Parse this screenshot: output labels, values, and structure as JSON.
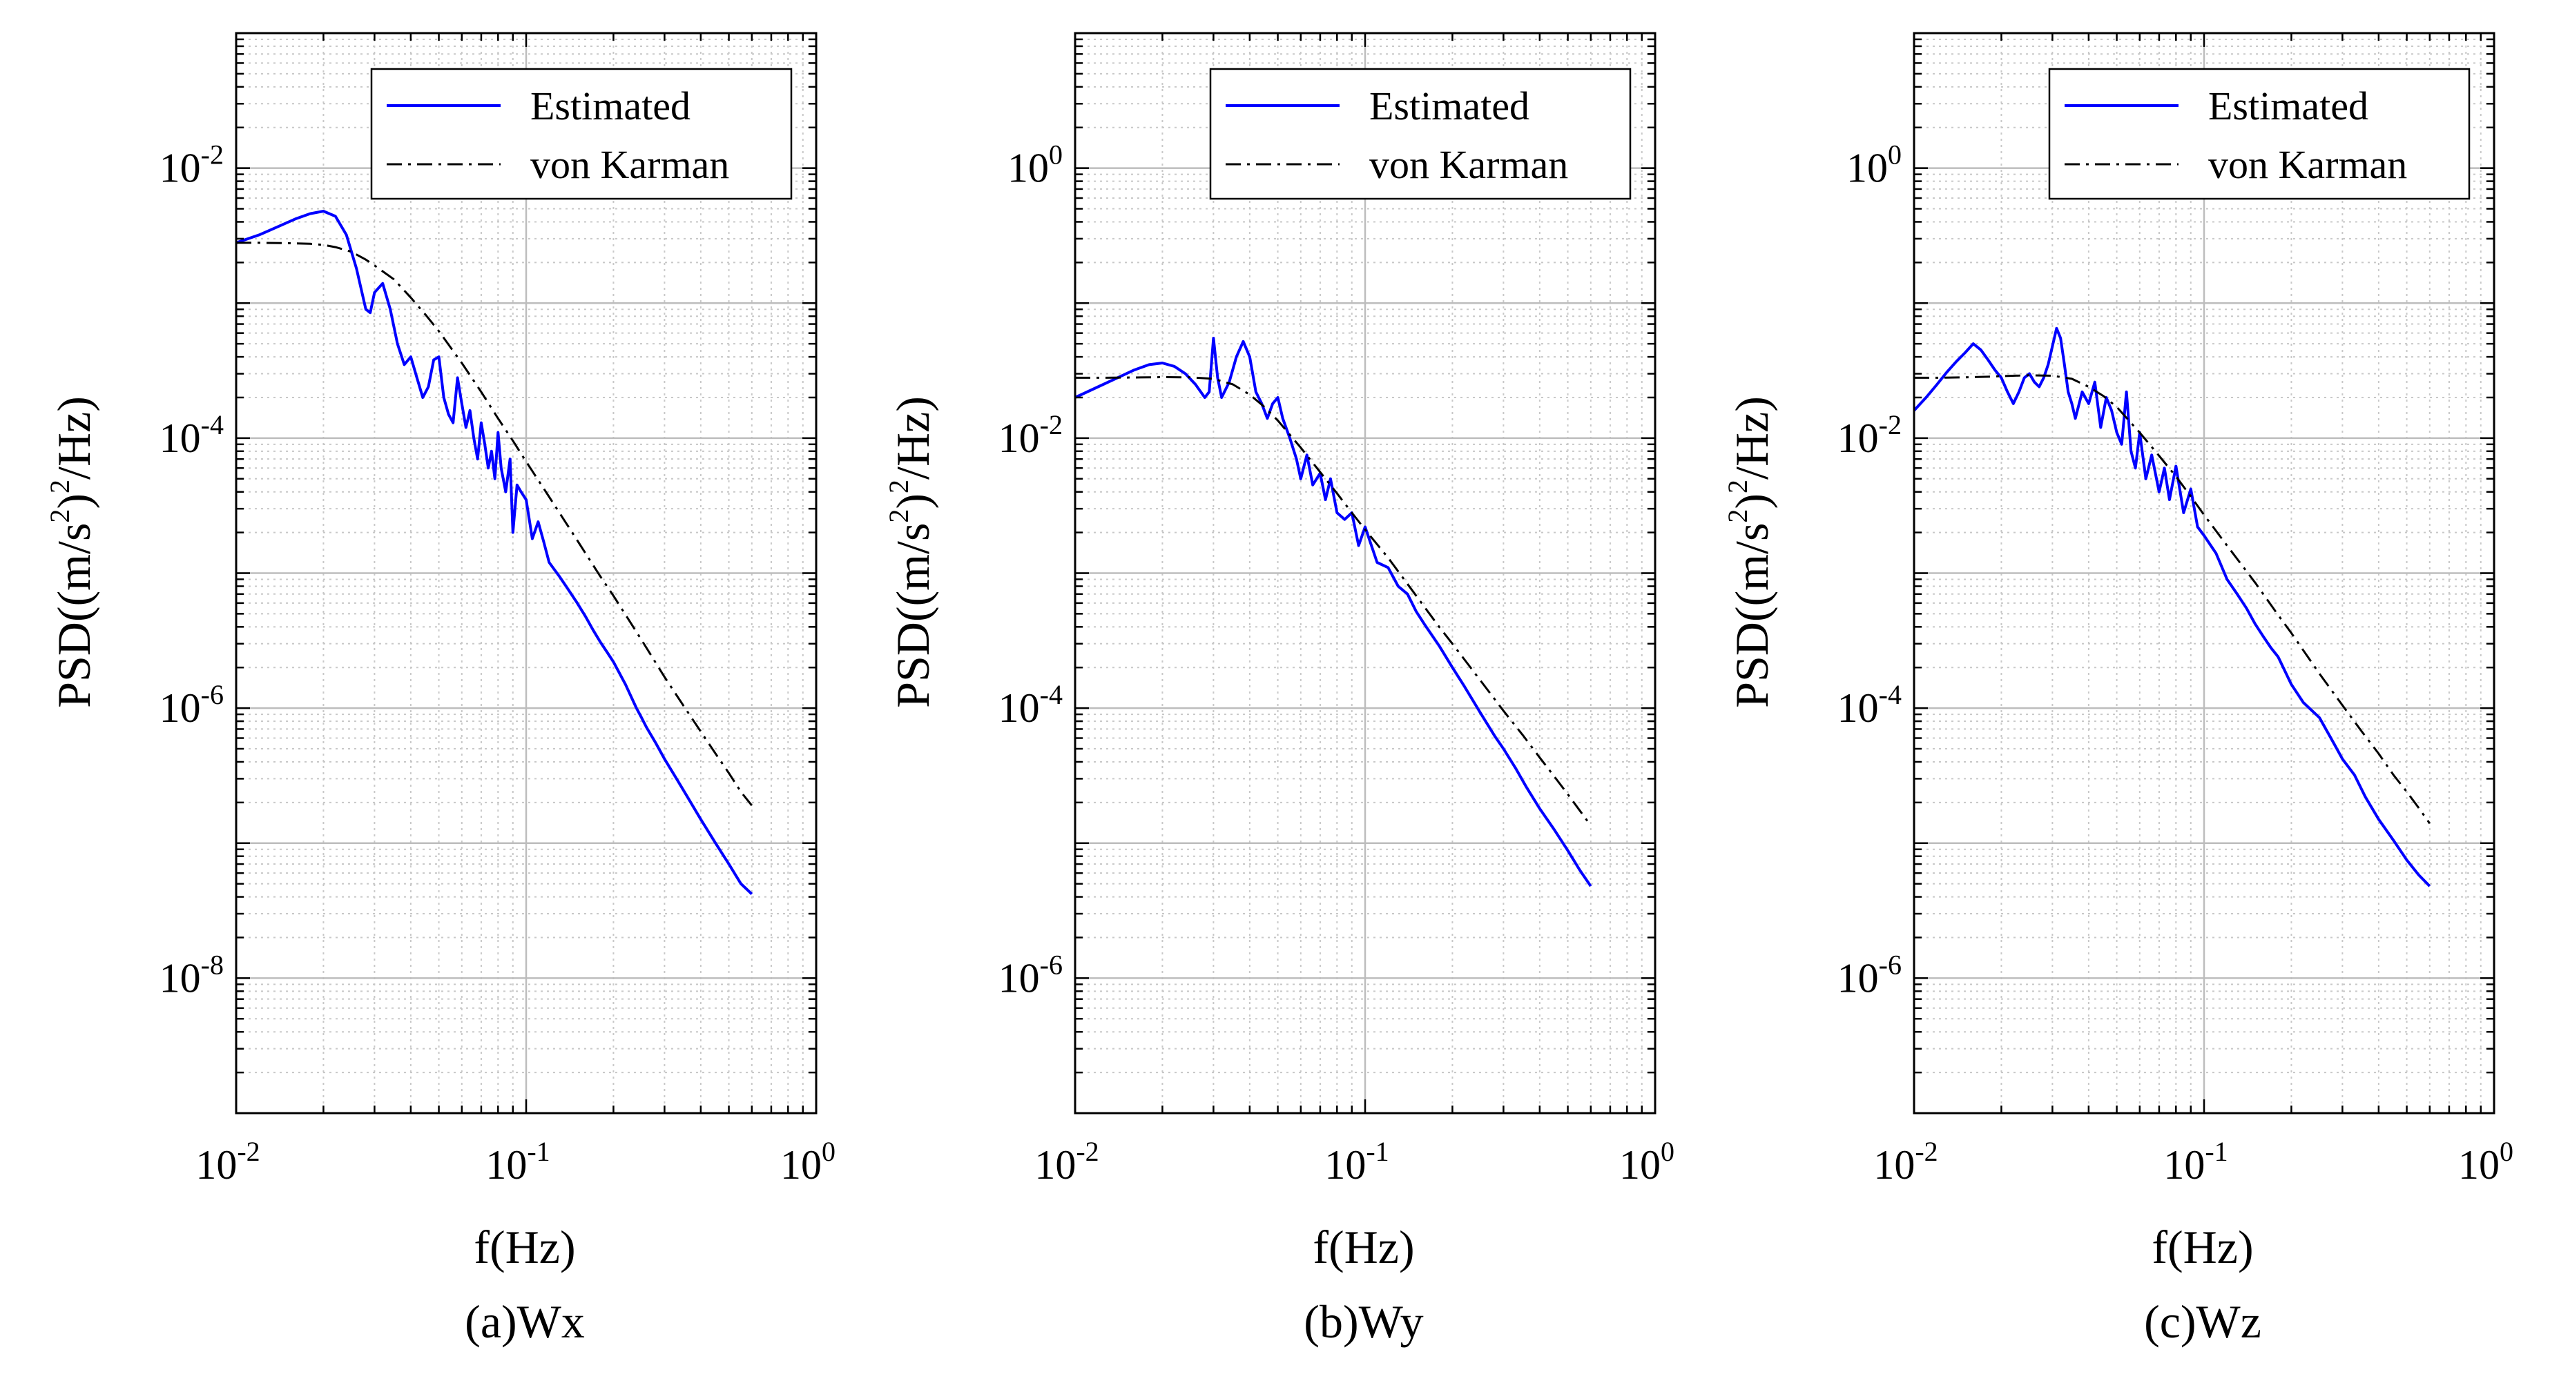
{
  "figure": {
    "captions": [
      "(a)Wx",
      "(b)Wy",
      "(c)Wz"
    ]
  },
  "chart_data": [
    {
      "type": "line",
      "panel": "a",
      "caption": "(a)Wx",
      "xscale": "log",
      "yscale": "log",
      "xlabel": "f(Hz)",
      "ylabel": {
        "prefix": "PSD((m/s",
        "exp1": "2",
        "mid": ")",
        "exp2": "2",
        "suffix": "/Hz)"
      },
      "xlim": [
        0.01,
        1
      ],
      "ylim": [
        1e-09,
        0.1
      ],
      "xticks": [
        {
          "base": "10",
          "exp": "-2",
          "value": 0.01
        },
        {
          "base": "10",
          "exp": "-1",
          "value": 0.1
        },
        {
          "base": "10",
          "exp": "0",
          "value": 1
        }
      ],
      "yticks": [
        {
          "base": "10",
          "exp": "-8",
          "value": 1e-08
        },
        {
          "base": "10",
          "exp": "-6",
          "value": 1e-06
        },
        {
          "base": "10",
          "exp": "-4",
          "value": 0.0001
        },
        {
          "base": "10",
          "exp": "-2",
          "value": 0.01
        }
      ],
      "grid": true,
      "legend_position": "top-right",
      "series": [
        {
          "name": "Estimated",
          "style": "solid",
          "color": "#0000ff",
          "x": [
            0.01,
            0.012,
            0.014,
            0.016,
            0.018,
            0.02,
            0.022,
            0.024,
            0.026,
            0.028,
            0.029,
            0.03,
            0.032,
            0.034,
            0.036,
            0.038,
            0.04,
            0.042,
            0.044,
            0.046,
            0.048,
            0.05,
            0.052,
            0.054,
            0.056,
            0.058,
            0.06,
            0.062,
            0.064,
            0.066,
            0.068,
            0.07,
            0.072,
            0.074,
            0.076,
            0.078,
            0.08,
            0.082,
            0.085,
            0.088,
            0.09,
            0.093,
            0.096,
            0.1,
            0.105,
            0.11,
            0.115,
            0.12,
            0.13,
            0.14,
            0.15,
            0.16,
            0.17,
            0.18,
            0.19,
            0.2,
            0.22,
            0.24,
            0.25,
            0.26,
            0.28,
            0.3,
            0.33,
            0.36,
            0.4,
            0.45,
            0.5,
            0.55,
            0.6
          ],
          "y": [
            0.0028,
            0.0032,
            0.0037,
            0.0042,
            0.0046,
            0.0048,
            0.0044,
            0.0032,
            0.0018,
            0.0009,
            0.00085,
            0.0012,
            0.0014,
            0.0009,
            0.0005,
            0.00035,
            0.0004,
            0.00028,
            0.0002,
            0.00024,
            0.00038,
            0.0004,
            0.0002,
            0.00015,
            0.00013,
            0.00028,
            0.00018,
            0.00012,
            0.00016,
            0.0001,
            7e-05,
            0.00013,
            9e-05,
            6e-05,
            8e-05,
            5e-05,
            0.00011,
            6e-05,
            4e-05,
            7e-05,
            2e-05,
            4.5e-05,
            4e-05,
            3.5e-05,
            1.8e-05,
            2.4e-05,
            1.7e-05,
            1.2e-05,
            9.5e-06,
            7.5e-06,
            6e-06,
            4.8e-06,
            3.8e-06,
            3.1e-06,
            2.6e-06,
            2.2e-06,
            1.5e-06,
            1e-06,
            8.5e-07,
            7.2e-07,
            5.5e-07,
            4.2e-07,
            3e-07,
            2.2e-07,
            1.5e-07,
            1e-07,
            7e-08,
            5e-08,
            4.2e-08
          ]
        },
        {
          "name": "von Karman",
          "style": "dashdot",
          "color": "#000000",
          "x": [
            0.01,
            0.012,
            0.015,
            0.018,
            0.02,
            0.022,
            0.025,
            0.028,
            0.03,
            0.035,
            0.04,
            0.045,
            0.05,
            0.06,
            0.07,
            0.08,
            0.09,
            0.1,
            0.12,
            0.15,
            0.18,
            0.2,
            0.25,
            0.3,
            0.35,
            0.4,
            0.45,
            0.5,
            0.55,
            0.6
          ],
          "y": [
            0.0028,
            0.0028,
            0.00278,
            0.00275,
            0.0027,
            0.0026,
            0.0024,
            0.0021,
            0.0019,
            0.0015,
            0.0011,
            0.00082,
            0.00062,
            0.00036,
            0.00022,
            0.00014,
            9.56e-05,
            6.7e-05,
            3.67e-05,
            1.75e-05,
            9.5e-06,
            6.8e-06,
            3.2e-06,
            1.7e-06,
            1.03e-06,
            6.7e-07,
            4.6e-07,
            3.3e-07,
            2.4e-07,
            1.9e-07
          ]
        }
      ]
    },
    {
      "type": "line",
      "panel": "b",
      "caption": "(b)Wy",
      "xscale": "log",
      "yscale": "log",
      "xlabel": "f(Hz)",
      "ylabel": {
        "prefix": "PSD((m/s",
        "exp1": "2",
        "mid": ")",
        "exp2": "2",
        "suffix": "/Hz)"
      },
      "xlim": [
        0.01,
        1
      ],
      "ylim": [
        1e-07,
        10
      ],
      "xticks": [
        {
          "base": "10",
          "exp": "-2",
          "value": 0.01
        },
        {
          "base": "10",
          "exp": "-1",
          "value": 0.1
        },
        {
          "base": "10",
          "exp": "0",
          "value": 1
        }
      ],
      "yticks": [
        {
          "base": "10",
          "exp": "-6",
          "value": 1e-06
        },
        {
          "base": "10",
          "exp": "-4",
          "value": 0.0001
        },
        {
          "base": "10",
          "exp": "-2",
          "value": 0.01
        },
        {
          "base": "10",
          "exp": "0",
          "value": 1
        }
      ],
      "grid": true,
      "legend_position": "top-right",
      "series": [
        {
          "name": "Estimated",
          "style": "solid",
          "color": "#0000ff",
          "x": [
            0.01,
            0.012,
            0.014,
            0.016,
            0.018,
            0.02,
            0.022,
            0.024,
            0.026,
            0.028,
            0.029,
            0.03,
            0.031,
            0.032,
            0.034,
            0.036,
            0.038,
            0.04,
            0.042,
            0.044,
            0.046,
            0.048,
            0.05,
            0.052,
            0.055,
            0.058,
            0.06,
            0.063,
            0.066,
            0.07,
            0.073,
            0.076,
            0.08,
            0.085,
            0.09,
            0.095,
            0.1,
            0.11,
            0.12,
            0.13,
            0.14,
            0.15,
            0.16,
            0.18,
            0.2,
            0.22,
            0.25,
            0.28,
            0.3,
            0.33,
            0.36,
            0.4,
            0.45,
            0.5,
            0.55,
            0.6
          ],
          "y": [
            0.02,
            0.024,
            0.028,
            0.032,
            0.035,
            0.036,
            0.034,
            0.03,
            0.025,
            0.02,
            0.022,
            0.055,
            0.028,
            0.02,
            0.026,
            0.04,
            0.052,
            0.04,
            0.022,
            0.018,
            0.014,
            0.018,
            0.02,
            0.014,
            0.01,
            0.007,
            0.005,
            0.0075,
            0.0045,
            0.0055,
            0.0035,
            0.005,
            0.0028,
            0.0025,
            0.0028,
            0.0016,
            0.0022,
            0.0012,
            0.0011,
            0.0008,
            0.0007,
            0.00052,
            0.00042,
            0.00029,
            0.0002,
            0.000145,
            9.2e-05,
            6.2e-05,
            5e-05,
            3.6e-05,
            2.6e-05,
            1.8e-05,
            1.25e-05,
            8.8e-06,
            6.3e-06,
            4.8e-06
          ]
        },
        {
          "name": "von Karman",
          "style": "dashdot",
          "color": "#000000",
          "x": [
            0.01,
            0.012,
            0.015,
            0.018,
            0.02,
            0.025,
            0.03,
            0.035,
            0.04,
            0.045,
            0.05,
            0.06,
            0.07,
            0.08,
            0.09,
            0.1,
            0.12,
            0.15,
            0.18,
            0.2,
            0.25,
            0.3,
            0.35,
            0.4,
            0.45,
            0.5,
            0.55,
            0.6
          ],
          "y": [
            0.028,
            0.028,
            0.0281,
            0.0282,
            0.0283,
            0.0282,
            0.0275,
            0.025,
            0.021,
            0.017,
            0.0135,
            0.0085,
            0.0056,
            0.0039,
            0.0028,
            0.0021,
            0.0013,
            0.00068,
            0.0004,
            0.0003,
            0.00016,
            9.55e-05,
            6.3e-05,
            4.3e-05,
            3.1e-05,
            2.3e-05,
            1.74e-05,
            1.35e-05
          ]
        }
      ]
    },
    {
      "type": "line",
      "panel": "c",
      "caption": "(c)Wz",
      "xscale": "log",
      "yscale": "log",
      "xlabel": "f(Hz)",
      "ylabel": {
        "prefix": "PSD((m/s",
        "exp1": "2",
        "mid": ")",
        "exp2": "2",
        "suffix": "/Hz)"
      },
      "xlim": [
        0.01,
        1
      ],
      "ylim": [
        1e-07,
        10
      ],
      "xticks": [
        {
          "base": "10",
          "exp": "-2",
          "value": 0.01
        },
        {
          "base": "10",
          "exp": "-1",
          "value": 0.1
        },
        {
          "base": "10",
          "exp": "0",
          "value": 1
        }
      ],
      "yticks": [
        {
          "base": "10",
          "exp": "-6",
          "value": 1e-06
        },
        {
          "base": "10",
          "exp": "-4",
          "value": 0.0001
        },
        {
          "base": "10",
          "exp": "-2",
          "value": 0.01
        },
        {
          "base": "10",
          "exp": "0",
          "value": 1
        }
      ],
      "grid": true,
      "legend_position": "top-right",
      "series": [
        {
          "name": "Estimated",
          "style": "solid",
          "color": "#0000ff",
          "x": [
            0.01,
            0.011,
            0.012,
            0.013,
            0.014,
            0.015,
            0.016,
            0.017,
            0.018,
            0.019,
            0.02,
            0.021,
            0.022,
            0.023,
            0.024,
            0.025,
            0.026,
            0.027,
            0.028,
            0.029,
            0.03,
            0.031,
            0.032,
            0.033,
            0.034,
            0.035,
            0.036,
            0.038,
            0.04,
            0.042,
            0.044,
            0.046,
            0.048,
            0.05,
            0.052,
            0.054,
            0.056,
            0.058,
            0.06,
            0.063,
            0.066,
            0.07,
            0.073,
            0.076,
            0.08,
            0.085,
            0.09,
            0.095,
            0.1,
            0.11,
            0.12,
            0.13,
            0.14,
            0.15,
            0.16,
            0.17,
            0.18,
            0.2,
            0.22,
            0.25,
            0.28,
            0.3,
            0.33,
            0.36,
            0.4,
            0.45,
            0.5,
            0.55,
            0.6
          ],
          "y": [
            0.016,
            0.02,
            0.025,
            0.031,
            0.037,
            0.043,
            0.05,
            0.045,
            0.038,
            0.032,
            0.028,
            0.022,
            0.018,
            0.022,
            0.028,
            0.03,
            0.026,
            0.024,
            0.028,
            0.035,
            0.048,
            0.065,
            0.055,
            0.035,
            0.022,
            0.018,
            0.014,
            0.022,
            0.018,
            0.026,
            0.012,
            0.02,
            0.016,
            0.011,
            0.009,
            0.022,
            0.008,
            0.006,
            0.011,
            0.005,
            0.0075,
            0.004,
            0.006,
            0.0035,
            0.0062,
            0.0028,
            0.0042,
            0.0022,
            0.0019,
            0.0014,
            0.0009,
            0.0007,
            0.00055,
            0.00042,
            0.00034,
            0.00028,
            0.00024,
            0.00015,
            0.00011,
            8.5e-05,
            5.5e-05,
            4.2e-05,
            3.2e-05,
            2.2e-05,
            1.5e-05,
            1.05e-05,
            7.5e-06,
            5.8e-06,
            4.8e-06
          ]
        },
        {
          "name": "von Karman",
          "style": "dashdot",
          "color": "#000000",
          "x": [
            0.01,
            0.012,
            0.015,
            0.018,
            0.02,
            0.025,
            0.03,
            0.035,
            0.04,
            0.045,
            0.05,
            0.06,
            0.07,
            0.08,
            0.09,
            0.1,
            0.12,
            0.15,
            0.18,
            0.2,
            0.25,
            0.3,
            0.35,
            0.4,
            0.45,
            0.5,
            0.55,
            0.6
          ],
          "y": [
            0.028,
            0.028,
            0.0282,
            0.0285,
            0.0288,
            0.0292,
            0.029,
            0.0275,
            0.024,
            0.0205,
            0.017,
            0.011,
            0.0074,
            0.0052,
            0.0037,
            0.0027,
            0.0016,
            0.00085,
            0.00049,
            0.00036,
            0.00018,
            0.000105,
            6.7e-05,
            4.6e-05,
            3.2e-05,
            2.4e-05,
            1.82e-05,
            1.4e-05
          ]
        }
      ]
    }
  ]
}
